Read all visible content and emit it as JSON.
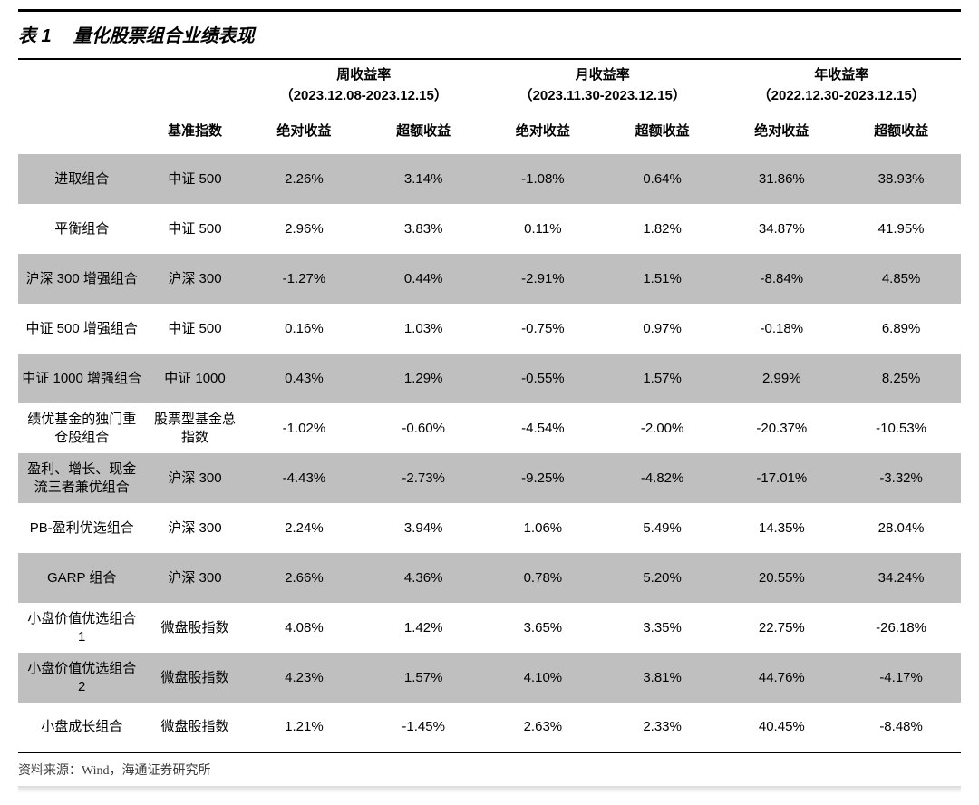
{
  "title_prefix": "表 1",
  "title_text": "量化股票组合业绩表现",
  "header": {
    "benchmark_label": "基准指数",
    "groups": [
      {
        "title": "周收益率",
        "range": "（2023.12.08-2023.12.15）"
      },
      {
        "title": "月收益率",
        "range": "（2023.11.30-2023.12.15）"
      },
      {
        "title": "年收益率",
        "range": "（2022.12.30-2023.12.15）"
      }
    ],
    "sub_labels": {
      "absolute": "绝对收益",
      "excess": "超额收益"
    }
  },
  "rows": [
    {
      "name": "进取组合",
      "benchmark": "中证 500",
      "w_abs": "2.26%",
      "w_exc": "3.14%",
      "m_abs": "-1.08%",
      "m_exc": "0.64%",
      "y_abs": "31.86%",
      "y_exc": "38.93%"
    },
    {
      "name": "平衡组合",
      "benchmark": "中证 500",
      "w_abs": "2.96%",
      "w_exc": "3.83%",
      "m_abs": "0.11%",
      "m_exc": "1.82%",
      "y_abs": "34.87%",
      "y_exc": "41.95%"
    },
    {
      "name": "沪深 300 增强组合",
      "benchmark": "沪深 300",
      "w_abs": "-1.27%",
      "w_exc": "0.44%",
      "m_abs": "-2.91%",
      "m_exc": "1.51%",
      "y_abs": "-8.84%",
      "y_exc": "4.85%"
    },
    {
      "name": "中证 500 增强组合",
      "benchmark": "中证 500",
      "w_abs": "0.16%",
      "w_exc": "1.03%",
      "m_abs": "-0.75%",
      "m_exc": "0.97%",
      "y_abs": "-0.18%",
      "y_exc": "6.89%"
    },
    {
      "name": "中证 1000 增强组合",
      "benchmark": "中证 1000",
      "w_abs": "0.43%",
      "w_exc": "1.29%",
      "m_abs": "-0.55%",
      "m_exc": "1.57%",
      "y_abs": "2.99%",
      "y_exc": "8.25%"
    },
    {
      "name": "绩优基金的独门重仓股组合",
      "benchmark": "股票型基金总指数",
      "w_abs": "-1.02%",
      "w_exc": "-0.60%",
      "m_abs": "-4.54%",
      "m_exc": "-2.00%",
      "y_abs": "-20.37%",
      "y_exc": "-10.53%"
    },
    {
      "name": "盈利、增长、现金流三者兼优组合",
      "benchmark": "沪深 300",
      "w_abs": "-4.43%",
      "w_exc": "-2.73%",
      "m_abs": "-9.25%",
      "m_exc": "-4.82%",
      "y_abs": "-17.01%",
      "y_exc": "-3.32%"
    },
    {
      "name": "PB-盈利优选组合",
      "benchmark": "沪深 300",
      "w_abs": "2.24%",
      "w_exc": "3.94%",
      "m_abs": "1.06%",
      "m_exc": "5.49%",
      "y_abs": "14.35%",
      "y_exc": "28.04%"
    },
    {
      "name": "GARP 组合",
      "benchmark": "沪深 300",
      "w_abs": "2.66%",
      "w_exc": "4.36%",
      "m_abs": "0.78%",
      "m_exc": "5.20%",
      "y_abs": "20.55%",
      "y_exc": "34.24%"
    },
    {
      "name": "小盘价值优选组合 1",
      "benchmark": "微盘股指数",
      "w_abs": "4.08%",
      "w_exc": "1.42%",
      "m_abs": "3.65%",
      "m_exc": "3.35%",
      "y_abs": "22.75%",
      "y_exc": "-26.18%"
    },
    {
      "name": "小盘价值优选组合 2",
      "benchmark": "微盘股指数",
      "w_abs": "4.23%",
      "w_exc": "1.57%",
      "m_abs": "4.10%",
      "m_exc": "3.81%",
      "y_abs": "44.76%",
      "y_exc": "-4.17%"
    },
    {
      "name": "小盘成长组合",
      "benchmark": "微盘股指数",
      "w_abs": "1.21%",
      "w_exc": "-1.45%",
      "m_abs": "2.63%",
      "m_exc": "2.33%",
      "y_abs": "40.45%",
      "y_exc": "-8.48%"
    }
  ],
  "source": "资料来源：Wind，海通证券研究所",
  "colors": {
    "row_odd_bg": "#bfbfbf",
    "row_even_bg": "#ffffff",
    "border": "#000000",
    "text": "#000000"
  }
}
